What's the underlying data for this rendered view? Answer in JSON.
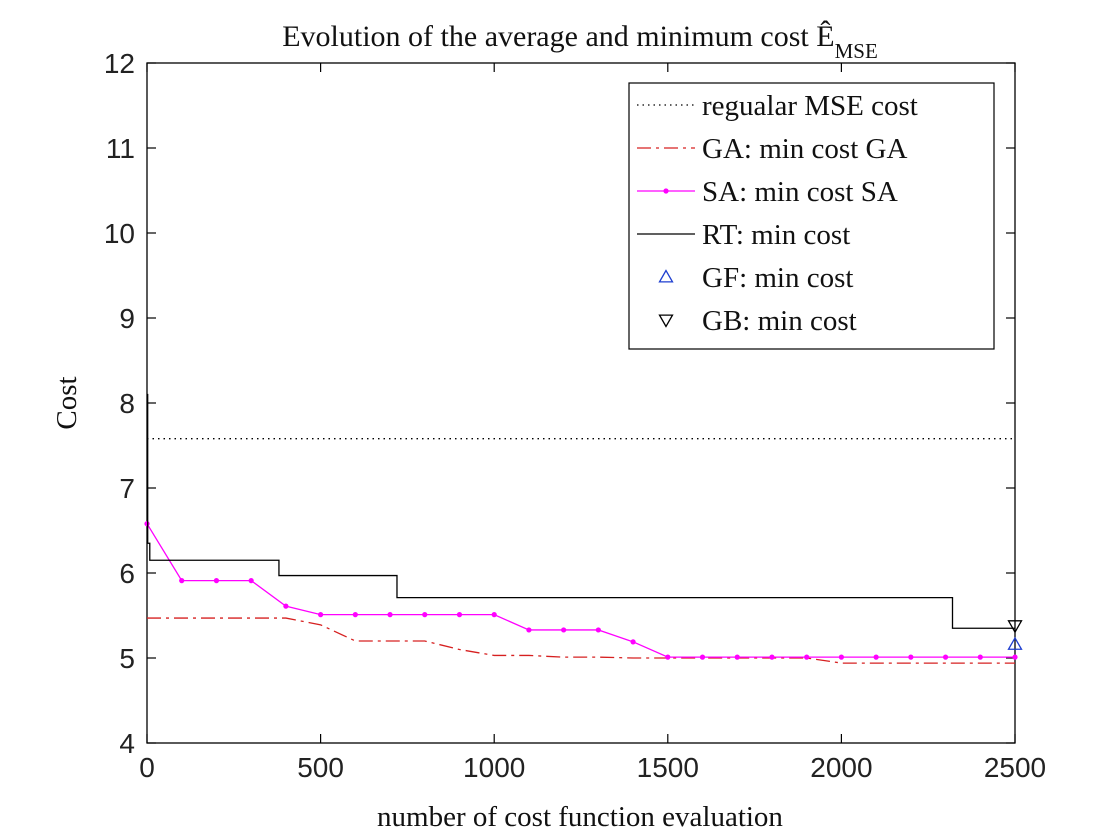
{
  "chart_data": {
    "type": "line",
    "title": "Evolution of the average and minimum cost Ê",
    "title_subscript": "MSE",
    "xlabel": "number of cost function evaluation",
    "ylabel": "Cost",
    "xlim": [
      0,
      2500
    ],
    "ylim": [
      4,
      12
    ],
    "xticks": [
      0,
      500,
      1000,
      1500,
      2000,
      2500
    ],
    "yticks": [
      4,
      5,
      6,
      7,
      8,
      9,
      10,
      11,
      12
    ],
    "grid": false,
    "legend_position": "top-right",
    "series": [
      {
        "name": "regualar MSE cost",
        "style": "dotted",
        "color": "#000000",
        "x": [
          0,
          2500
        ],
        "y": [
          7.58,
          7.58
        ]
      },
      {
        "name": "GA: min cost GA",
        "style": "dashdot",
        "color": "#d62020",
        "x": [
          0,
          100,
          200,
          300,
          400,
          500,
          600,
          700,
          800,
          900,
          1000,
          1100,
          1200,
          1300,
          1400,
          1500,
          1600,
          1700,
          1800,
          1900,
          2000,
          2100,
          2200,
          2300,
          2400,
          2500
        ],
        "y": [
          5.47,
          5.47,
          5.47,
          5.47,
          5.47,
          5.39,
          5.2,
          5.2,
          5.2,
          5.1,
          5.03,
          5.03,
          5.01,
          5.01,
          5.0,
          5.0,
          5.0,
          5.0,
          5.0,
          5.0,
          4.94,
          4.94,
          4.94,
          4.94,
          4.94,
          4.94
        ]
      },
      {
        "name": "SA: min cost SA",
        "style": "solid-marker",
        "color": "#ff00ff",
        "x": [
          0,
          100,
          200,
          300,
          400,
          500,
          600,
          700,
          800,
          900,
          1000,
          1100,
          1200,
          1300,
          1400,
          1500,
          1600,
          1700,
          1800,
          1900,
          2000,
          2100,
          2200,
          2300,
          2400,
          2500
        ],
        "y": [
          6.58,
          5.91,
          5.91,
          5.91,
          5.61,
          5.51,
          5.51,
          5.51,
          5.51,
          5.51,
          5.51,
          5.33,
          5.33,
          5.33,
          5.19,
          5.01,
          5.01,
          5.01,
          5.01,
          5.01,
          5.01,
          5.01,
          5.01,
          5.01,
          5.01,
          5.01
        ]
      },
      {
        "name": "RT: min cost",
        "style": "step",
        "color": "#000000",
        "x": [
          0,
          2,
          2,
          8,
          8,
          380,
          380,
          720,
          720,
          2320,
          2320,
          2500
        ],
        "y": [
          8.1,
          8.1,
          6.35,
          6.35,
          6.15,
          6.15,
          5.97,
          5.97,
          5.71,
          5.71,
          5.35,
          5.35
        ]
      },
      {
        "name": "GF: min cost",
        "style": "marker-triangle-up",
        "color": "#1f3fd0",
        "x": [
          2500
        ],
        "y": [
          5.16
        ]
      },
      {
        "name": "GB: min cost",
        "style": "marker-triangle-down",
        "color": "#000000",
        "x": [
          2500
        ],
        "y": [
          5.38
        ]
      }
    ]
  }
}
